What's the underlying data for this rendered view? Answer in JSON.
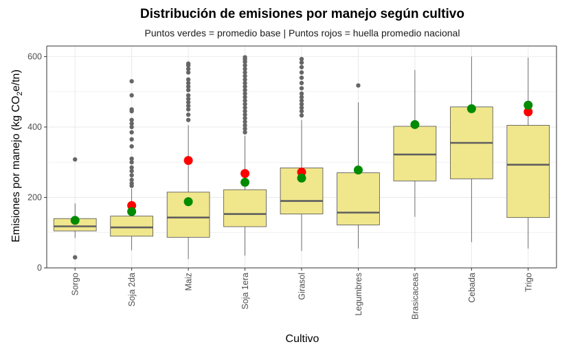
{
  "chart_data": {
    "type": "boxplot",
    "title": "Distribución de emisiones por manejo según cultivo",
    "subtitle": "Puntos verdes = promedio base | Puntos rojos = huella promedio nacional",
    "xlabel": "Cultivo",
    "ylabel": {
      "prefix": "Emisiones por manejo (kg CO",
      "sub": "2",
      "suffix": "e/tn)"
    },
    "ylim": [
      0,
      630
    ],
    "yticks": [
      0,
      200,
      400,
      600
    ],
    "categories": [
      "Sorgo",
      "Soja 2da",
      "Maiz",
      "Soja 1era",
      "Girasol",
      "Legumbres",
      "Brasicaceas",
      "Cebada",
      "Trigo"
    ],
    "boxes": [
      {
        "name": "Sorgo",
        "whisker_low": 85,
        "q1": 105,
        "median": 118,
        "q3": 140,
        "whisker_high": 183,
        "outliers": [
          30,
          308
        ]
      },
      {
        "name": "Soja 2da",
        "whisker_low": 50,
        "q1": 90,
        "median": 115,
        "q3": 147,
        "whisker_high": 225,
        "outliers": [
          233,
          240,
          250,
          263,
          275,
          285,
          300,
          310,
          345,
          365,
          385,
          400,
          410,
          420,
          445,
          450,
          490,
          530
        ]
      },
      {
        "name": "Maiz",
        "whisker_low": 25,
        "q1": 87,
        "median": 143,
        "q3": 215,
        "whisker_high": 405,
        "outliers": [
          420,
          435,
          450,
          460,
          470,
          480,
          490,
          505,
          515,
          525,
          535,
          555,
          565,
          575,
          580
        ]
      },
      {
        "name": "Soja 1era",
        "whisker_low": 35,
        "q1": 117,
        "median": 153,
        "q3": 222,
        "whisker_high": 375,
        "outliers": [
          385,
          395,
          405,
          415,
          425,
          435,
          445,
          455,
          465,
          475,
          485,
          495,
          505,
          515,
          525,
          535,
          545,
          555,
          565,
          575,
          585,
          592,
          598
        ]
      },
      {
        "name": "Girasol",
        "whisker_low": 48,
        "q1": 153,
        "median": 190,
        "q3": 284,
        "whisker_high": 420,
        "outliers": [
          433,
          445,
          455,
          465,
          475,
          485,
          495,
          510,
          525,
          540,
          555,
          570,
          583,
          593
        ]
      },
      {
        "name": "Legumbres",
        "whisker_low": 55,
        "q1": 122,
        "median": 157,
        "q3": 270,
        "whisker_high": 470,
        "outliers": [
          518
        ]
      },
      {
        "name": "Brasicaceas",
        "whisker_low": 145,
        "q1": 247,
        "median": 322,
        "q3": 402,
        "whisker_high": 562,
        "outliers": []
      },
      {
        "name": "Cebada",
        "whisker_low": 73,
        "q1": 253,
        "median": 355,
        "q3": 457,
        "whisker_high": 600,
        "outliers": []
      },
      {
        "name": "Trigo",
        "whisker_low": 55,
        "q1": 143,
        "median": 293,
        "q3": 405,
        "whisker_high": 597,
        "outliers": []
      }
    ],
    "promedio_base": [
      135,
      160,
      188,
      243,
      255,
      278,
      407,
      452,
      462
    ],
    "huella_nacional": [
      null,
      177,
      305,
      268,
      272,
      null,
      null,
      null,
      443
    ],
    "colors": {
      "box_fill": "#f0e68c",
      "box_stroke": "#4d4d4d",
      "median": "#5e5e5e",
      "outlier": "#666666",
      "base_point": "#008b00",
      "national_point": "#ff0000",
      "grid": "#ebebeb"
    }
  }
}
